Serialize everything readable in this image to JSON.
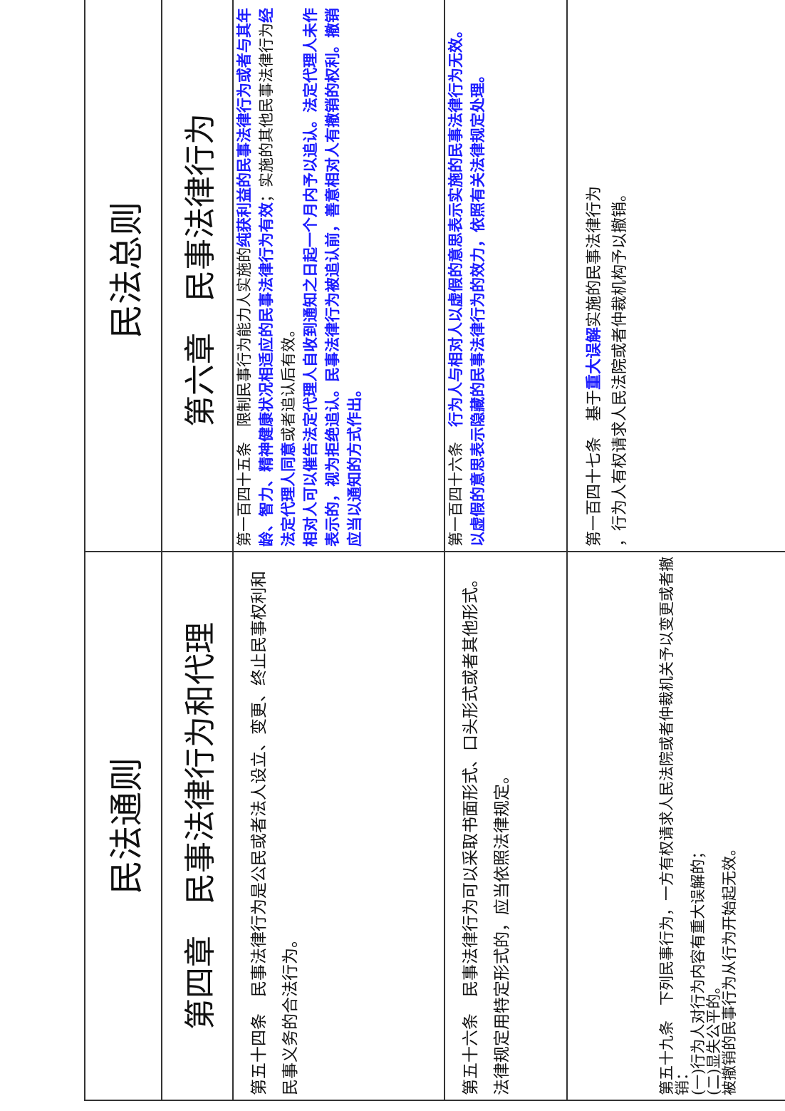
{
  "colors": {
    "highlight": "#1a1aff",
    "text": "#111111"
  },
  "left": {
    "title": "民法通则",
    "chapter": "第四章　民事法律行为和代理",
    "rows": [
      [
        [
          {
            "t": "第五十四条　民事法律行为是公民或者法人设立、变更、终止民事权利和民事义务的合法行为。"
          }
        ]
      ],
      [
        [
          {
            "t": "第五十六条　民事法律行为可以采取书面形式、口头形式或者其他形式。法律规定用特定形式的，应当依照法律规定。"
          }
        ]
      ],
      [
        [
          {
            "t": "第五十九条　下列民事行为，一方有权请求人民法院或者仲裁机关予以变更或者撤销："
          }
        ],
        [
          {
            "t": "(一)行为人对行为内容有重大误解的；"
          }
        ],
        [
          {
            "t": "(二)显失公平的。"
          }
        ],
        [
          {
            "t": "被撤销的民事行为从行为开始起无效。"
          }
        ]
      ]
    ]
  },
  "right": {
    "title": "民法总则",
    "chapter": "第六章　民事法律行为",
    "rows": [
      [
        [
          {
            "t": "第一百四十五条　限制民事行为能力人实施的"
          },
          {
            "t": "纯获利益的民事法律行为或者与其年龄、智力、精神健康状况相适应的民事法律行为有效",
            "b": true
          },
          {
            "t": "；实施的其他民事法律行为"
          },
          {
            "t": "经法定代理人同意",
            "b": true
          },
          {
            "t": "或者追认后有效。"
          }
        ],
        [
          {
            "t": "相对人可以催告法定代理人自收到通知之日起一个月内予以追认。法定代理人未作表示的，视为拒绝追认。民事法律行为被追认前，善意相对人有撤销的权利。撤销应当以通知的方式作出。",
            "b": true
          }
        ]
      ],
      [
        [
          {
            "t": "第一百四十六条　"
          },
          {
            "t": "行为人与相对人以虚假的意思表示实施的民事法律行为无效。",
            "b": true
          }
        ],
        [
          {
            "t": "以虚假的意思表示隐藏的民事法律行为的效力，依照有关法律规定处理。",
            "b": true
          }
        ]
      ],
      [
        [
          {
            "t": "第一百四十七条　基于"
          },
          {
            "t": "重大误解",
            "b": true
          },
          {
            "t": "实施的民事法律行为"
          }
        ],
        [
          {
            "t": "，行为人有权请求人民法院或者仲裁机构予以撤销。"
          }
        ]
      ]
    ]
  }
}
